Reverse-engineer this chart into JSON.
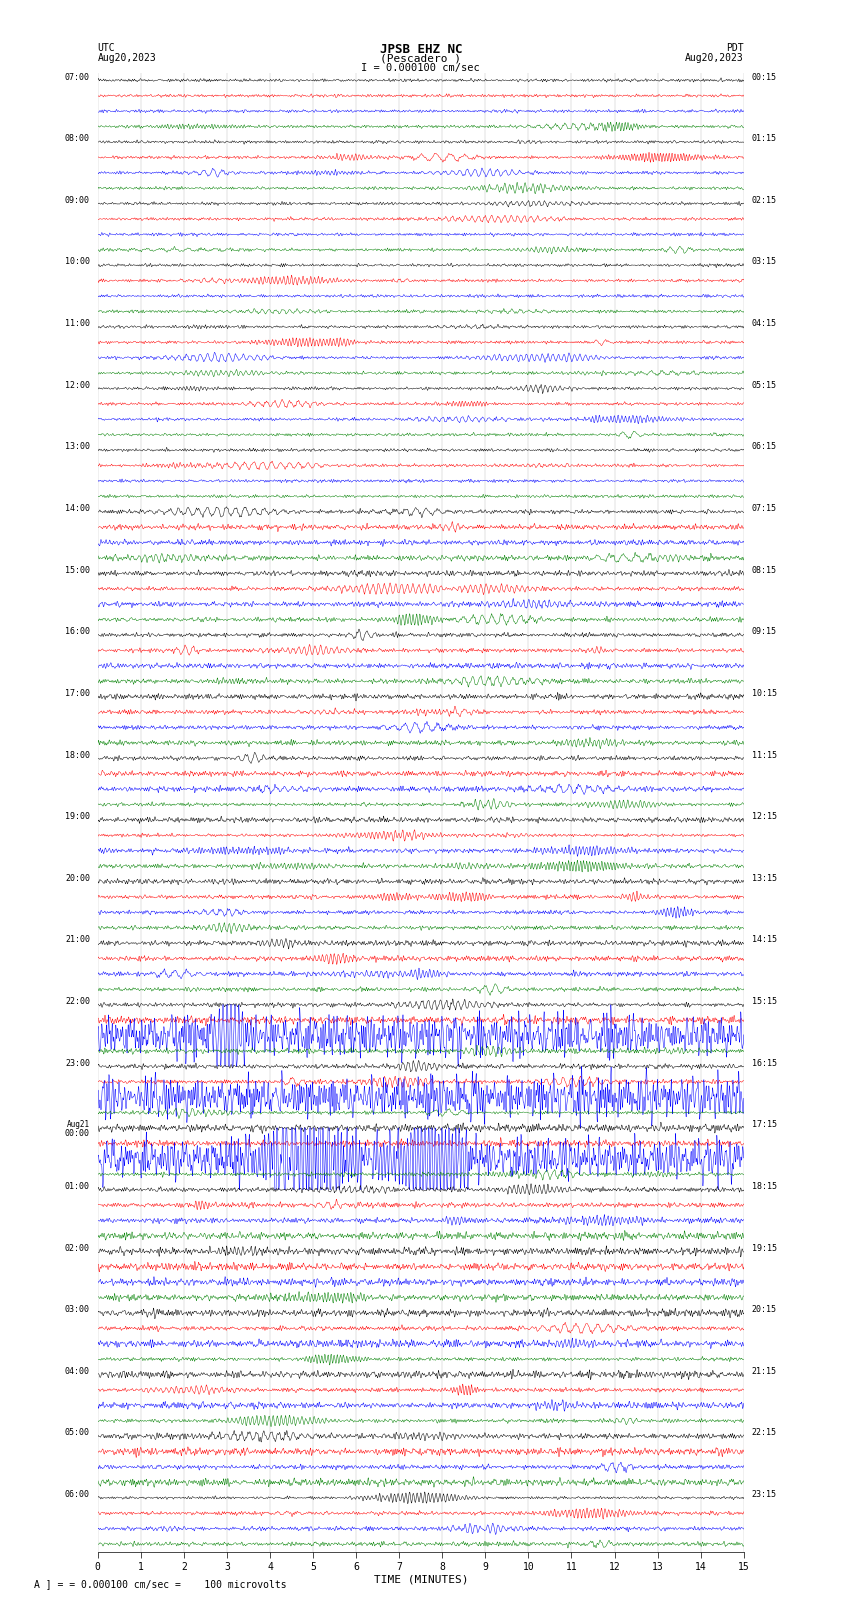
{
  "title_line1": "JPSB EHZ NC",
  "title_line2": "(Pescadero )",
  "title_scale": "I = 0.000100 cm/sec",
  "left_header": "UTC",
  "left_date": "Aug20,2023",
  "right_header": "PDT",
  "right_date": "Aug20,2023",
  "xlabel": "TIME (MINUTES)",
  "footnote": "= 0.000100 cm/sec =    100 microvolts",
  "footnote_symbol": "A",
  "xmin": 0,
  "xmax": 15,
  "trace_colors": [
    "black",
    "red",
    "blue",
    "green"
  ],
  "bg_color": "white",
  "n_points": 3000,
  "utc_labels": [
    "07:00",
    "",
    "",
    "",
    "08:00",
    "",
    "",
    "",
    "09:00",
    "",
    "",
    "",
    "10:00",
    "",
    "",
    "",
    "11:00",
    "",
    "",
    "",
    "12:00",
    "",
    "",
    "",
    "13:00",
    "",
    "",
    "",
    "14:00",
    "",
    "",
    "",
    "15:00",
    "",
    "",
    "",
    "16:00",
    "",
    "",
    "",
    "17:00",
    "",
    "",
    "",
    "18:00",
    "",
    "",
    "",
    "19:00",
    "",
    "",
    "",
    "20:00",
    "",
    "",
    "",
    "21:00",
    "",
    "",
    "",
    "22:00",
    "",
    "",
    "",
    "23:00",
    "",
    "",
    "",
    "Aug21\n00:00",
    "",
    "",
    "",
    "01:00",
    "",
    "",
    "",
    "02:00",
    "",
    "",
    "",
    "03:00",
    "",
    "",
    "",
    "04:00",
    "",
    "",
    "",
    "05:00",
    "",
    "",
    "",
    "06:00",
    "",
    "",
    ""
  ],
  "pdt_labels": [
    "00:15",
    "",
    "",
    "",
    "01:15",
    "",
    "",
    "",
    "02:15",
    "",
    "",
    "",
    "03:15",
    "",
    "",
    "",
    "04:15",
    "",
    "",
    "",
    "05:15",
    "",
    "",
    "",
    "06:15",
    "",
    "",
    "",
    "07:15",
    "",
    "",
    "",
    "08:15",
    "",
    "",
    "",
    "09:15",
    "",
    "",
    "",
    "10:15",
    "",
    "",
    "",
    "11:15",
    "",
    "",
    "",
    "12:15",
    "",
    "",
    "",
    "13:15",
    "",
    "",
    "",
    "14:15",
    "",
    "",
    "",
    "15:15",
    "",
    "",
    "",
    "16:15",
    "",
    "",
    "",
    "17:15",
    "",
    "",
    "",
    "18:15",
    "",
    "",
    "",
    "19:15",
    "",
    "",
    "",
    "20:15",
    "",
    "",
    "",
    "21:15",
    "",
    "",
    "",
    "22:15",
    "",
    "",
    "",
    "23:15",
    "",
    "",
    ""
  ]
}
